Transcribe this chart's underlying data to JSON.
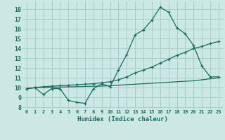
{
  "xlabel": "Humidex (Indice chaleur)",
  "bg_color": "#cce8e4",
  "grid_color": "#aacccc",
  "line_color": "#1a6b5e",
  "xlim": [
    -0.5,
    23.5
  ],
  "ylim": [
    7.8,
    18.8
  ],
  "xticks": [
    0,
    1,
    2,
    3,
    4,
    5,
    6,
    7,
    8,
    9,
    10,
    11,
    12,
    13,
    14,
    15,
    16,
    17,
    18,
    19,
    20,
    21,
    22,
    23
  ],
  "yticks": [
    8,
    9,
    10,
    11,
    12,
    13,
    14,
    15,
    16,
    17,
    18
  ],
  "line1_x": [
    0,
    1,
    2,
    3,
    4,
    5,
    6,
    7,
    8,
    9,
    10,
    11,
    12,
    13,
    14,
    15,
    16,
    17,
    18,
    19,
    20,
    21,
    22,
    23
  ],
  "line1_y": [
    9.9,
    10.0,
    9.3,
    9.9,
    9.9,
    8.7,
    8.5,
    8.4,
    9.9,
    10.4,
    10.1,
    11.8,
    13.4,
    15.4,
    15.9,
    16.9,
    18.2,
    17.7,
    16.1,
    15.5,
    14.3,
    12.2,
    11.1,
    11.1
  ],
  "line2_x": [
    0,
    1,
    2,
    3,
    4,
    5,
    6,
    7,
    8,
    9,
    10,
    11,
    12,
    13,
    14,
    15,
    16,
    17,
    18,
    19,
    20,
    21,
    22,
    23
  ],
  "line2_y": [
    9.9,
    10.0,
    10.1,
    10.15,
    10.2,
    10.25,
    10.3,
    10.35,
    10.4,
    10.5,
    10.6,
    10.8,
    11.1,
    11.5,
    11.8,
    12.1,
    12.5,
    12.9,
    13.3,
    13.6,
    14.0,
    14.2,
    14.5,
    14.7
  ],
  "line3_x": [
    0,
    1,
    2,
    3,
    4,
    5,
    6,
    7,
    8,
    9,
    10,
    11,
    12,
    13,
    14,
    15,
    16,
    17,
    18,
    19,
    20,
    21,
    22,
    23
  ],
  "line3_y": [
    9.9,
    10.0,
    10.02,
    10.04,
    10.06,
    10.08,
    10.1,
    10.12,
    10.14,
    10.16,
    10.2,
    10.25,
    10.3,
    10.35,
    10.4,
    10.45,
    10.5,
    10.55,
    10.6,
    10.65,
    10.7,
    10.8,
    10.9,
    11.0
  ]
}
